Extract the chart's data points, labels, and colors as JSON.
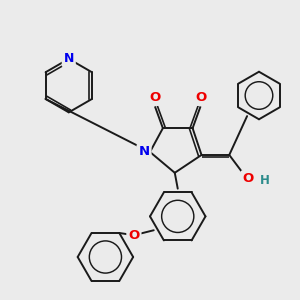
{
  "background_color": "#ebebeb",
  "bond_color": "#1a1a1a",
  "atom_colors": {
    "N": "#0000ee",
    "O": "#ee0000",
    "C": "#1a1a1a",
    "H": "#2d8c8c"
  },
  "figsize": [
    3.0,
    3.0
  ],
  "dpi": 100
}
